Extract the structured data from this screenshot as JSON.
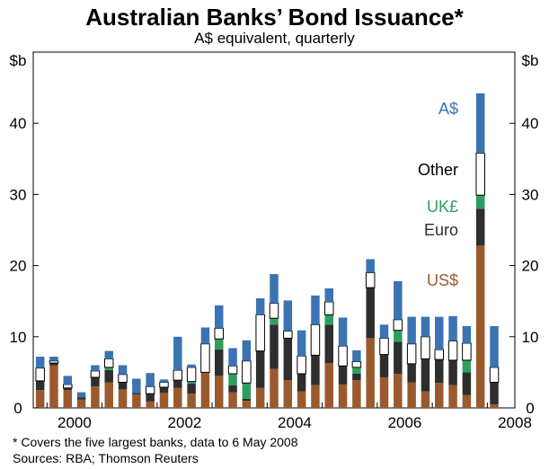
{
  "chart_data": {
    "type": "bar",
    "stacked": true,
    "title": "Australian Banks’ Bond Issuance*",
    "subtitle": "A$ equivalent, quarterly",
    "ylabel_left": "$b",
    "ylabel_right": "$b",
    "ylim": [
      0,
      50
    ],
    "yticks": [
      0,
      10,
      20,
      30,
      40
    ],
    "xlabels": [
      "2000",
      "2002",
      "2004",
      "2006",
      "2008"
    ],
    "x_first_quarter": "1999-Q4",
    "grid": false,
    "categories": [
      "1999-Q4",
      "2000-Q1",
      "2000-Q2",
      "2000-Q3",
      "2000-Q4",
      "2001-Q1",
      "2001-Q2",
      "2001-Q3",
      "2001-Q4",
      "2002-Q1",
      "2002-Q2",
      "2002-Q3",
      "2002-Q4",
      "2003-Q1",
      "2003-Q2",
      "2003-Q3",
      "2003-Q4",
      "2004-Q1",
      "2004-Q2",
      "2004-Q3",
      "2004-Q4",
      "2005-Q1",
      "2005-Q2",
      "2005-Q3",
      "2005-Q4",
      "2006-Q1",
      "2006-Q2",
      "2006-Q3",
      "2006-Q4",
      "2007-Q1",
      "2007-Q2",
      "2007-Q3",
      "2007-Q4",
      "2008-Q1",
      "2008-Q2"
    ],
    "series": [
      {
        "name": "US$",
        "color": "#9b5a2e",
        "values": [
          2.5,
          6.0,
          2.5,
          1.2,
          3.0,
          3.6,
          2.6,
          1.9,
          0.9,
          2.1,
          2.8,
          2.0,
          5.0,
          4.5,
          2.2,
          1.0,
          2.8,
          5.5,
          3.9,
          2.3,
          3.2,
          6.3,
          3.3,
          3.9,
          9.8,
          4.3,
          4.8,
          3.6,
          2.3,
          3.5,
          3.2,
          1.8,
          22.8,
          0.5,
          0
        ]
      },
      {
        "name": "Euro",
        "color": "#2e2e2e",
        "values": [
          1.3,
          0.3,
          0.3,
          0.3,
          1.3,
          1.7,
          1.0,
          0.2,
          1.1,
          0.8,
          1.1,
          1.4,
          0,
          3.7,
          1.0,
          0.3,
          5.2,
          6.2,
          5.9,
          2.5,
          4.2,
          5.4,
          2.6,
          0.9,
          7.1,
          3.2,
          4.5,
          2.6,
          4.6,
          3.3,
          3.5,
          3.2,
          5.2,
          3.1,
          0
        ]
      },
      {
        "name": "UK£",
        "color": "#2e9e5e",
        "values": [
          0,
          0,
          0,
          0,
          0,
          0.4,
          0,
          0,
          0,
          0,
          0,
          0.3,
          0,
          1.5,
          1.6,
          2.2,
          0,
          0.9,
          0,
          0,
          0,
          1.4,
          0,
          0.9,
          0,
          0,
          1.6,
          0,
          0,
          0,
          0,
          1.7,
          1.9,
          0,
          0
        ]
      },
      {
        "name": "Other",
        "color": "#ffffff",
        "values": [
          1.8,
          0.3,
          0.5,
          0,
          0.9,
          1.2,
          1.1,
          0,
          1.0,
          0.7,
          1.4,
          2.0,
          4.0,
          1.5,
          1.1,
          3.1,
          5.1,
          2.1,
          1.0,
          2.5,
          4.3,
          1.8,
          2.8,
          0.8,
          2.1,
          2.3,
          1.5,
          2.8,
          3.1,
          1.4,
          2.7,
          2.4,
          5.9,
          2.1,
          0
        ]
      },
      {
        "name": "A$",
        "color": "#3b73b3",
        "values": [
          1.6,
          0.6,
          1.2,
          0.7,
          0.8,
          1.1,
          1.3,
          2.0,
          1.9,
          0.4,
          4.7,
          0.4,
          2.3,
          3.2,
          2.5,
          2.9,
          2.3,
          4.1,
          4.3,
          3.6,
          4.1,
          1.9,
          4.0,
          1.6,
          1.9,
          1.9,
          5.4,
          3.8,
          2.8,
          4.6,
          3.5,
          2.4,
          8.4,
          5.8,
          0
        ]
      }
    ],
    "legend": [
      {
        "name": "A$",
        "color": "#3b73b3"
      },
      {
        "name": "Other",
        "color": "#000000"
      },
      {
        "name": "UK£",
        "color": "#2e9e5e"
      },
      {
        "name": "Euro",
        "color": "#2e2e2e"
      },
      {
        "name": "US$",
        "color": "#9b5a2e"
      }
    ],
    "legend_placement": "right, inside plot"
  },
  "footnote": "*    Covers the five largest banks, data to 6 May 2008",
  "sources": "Sources: RBA; Thomson Reuters"
}
